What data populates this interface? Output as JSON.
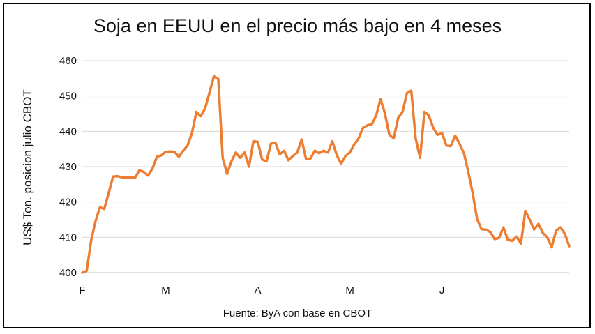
{
  "chart_data": {
    "type": "line",
    "title": "Soja en EEUU en el precio más bajo en 4 meses",
    "ylabel": "US$ Ton. posicion julio CBOT",
    "source": "Fuente: ByA con base en CBOT",
    "ylim": [
      400,
      460
    ],
    "yticks": [
      400,
      410,
      420,
      430,
      440,
      450,
      460
    ],
    "x_tick_labels": [
      {
        "label": "F",
        "index": 0
      },
      {
        "label": "M",
        "index": 19
      },
      {
        "label": "A",
        "index": 40
      },
      {
        "label": "M",
        "index": 61
      },
      {
        "label": "J",
        "index": 82
      }
    ],
    "grid": true,
    "line_color": "#ED7D31",
    "series": [
      {
        "values": [
          400.0,
          400.5,
          409.0,
          414.5,
          418.5,
          418.0,
          422.5,
          427.2,
          427.3,
          427.0,
          427.0,
          427.0,
          426.8,
          429.0,
          428.5,
          427.5,
          429.5,
          432.8,
          433.2,
          434.2,
          434.3,
          434.2,
          432.8,
          434.5,
          436.0,
          439.5,
          445.5,
          444.3,
          446.5,
          451.0,
          455.6,
          454.8,
          432.5,
          428.0,
          431.5,
          434.0,
          432.5,
          434.0,
          430.0,
          437.2,
          437.0,
          432.0,
          431.5,
          436.5,
          436.8,
          433.5,
          434.5,
          431.8,
          433.0,
          434.0,
          437.7,
          432.2,
          432.3,
          434.5,
          433.8,
          434.5,
          434.0,
          437.2,
          433.3,
          430.8,
          433.0,
          434.0,
          436.3,
          438.0,
          441.0,
          441.7,
          442.0,
          444.5,
          449.2,
          445.0,
          439.0,
          438.0,
          443.8,
          445.5,
          450.8,
          451.5,
          438.0,
          432.5,
          445.5,
          444.5,
          441.0,
          439.0,
          439.5,
          436.0,
          435.8,
          438.8,
          436.5,
          433.8,
          428.5,
          422.5,
          415.2,
          412.3,
          412.2,
          411.5,
          409.5,
          409.8,
          412.8,
          409.3,
          409.0,
          410.2,
          408.2,
          417.5,
          415.0,
          412.2,
          413.8,
          411.2,
          410.0,
          407.2,
          411.8,
          412.8,
          411.0,
          407.5
        ]
      }
    ]
  }
}
